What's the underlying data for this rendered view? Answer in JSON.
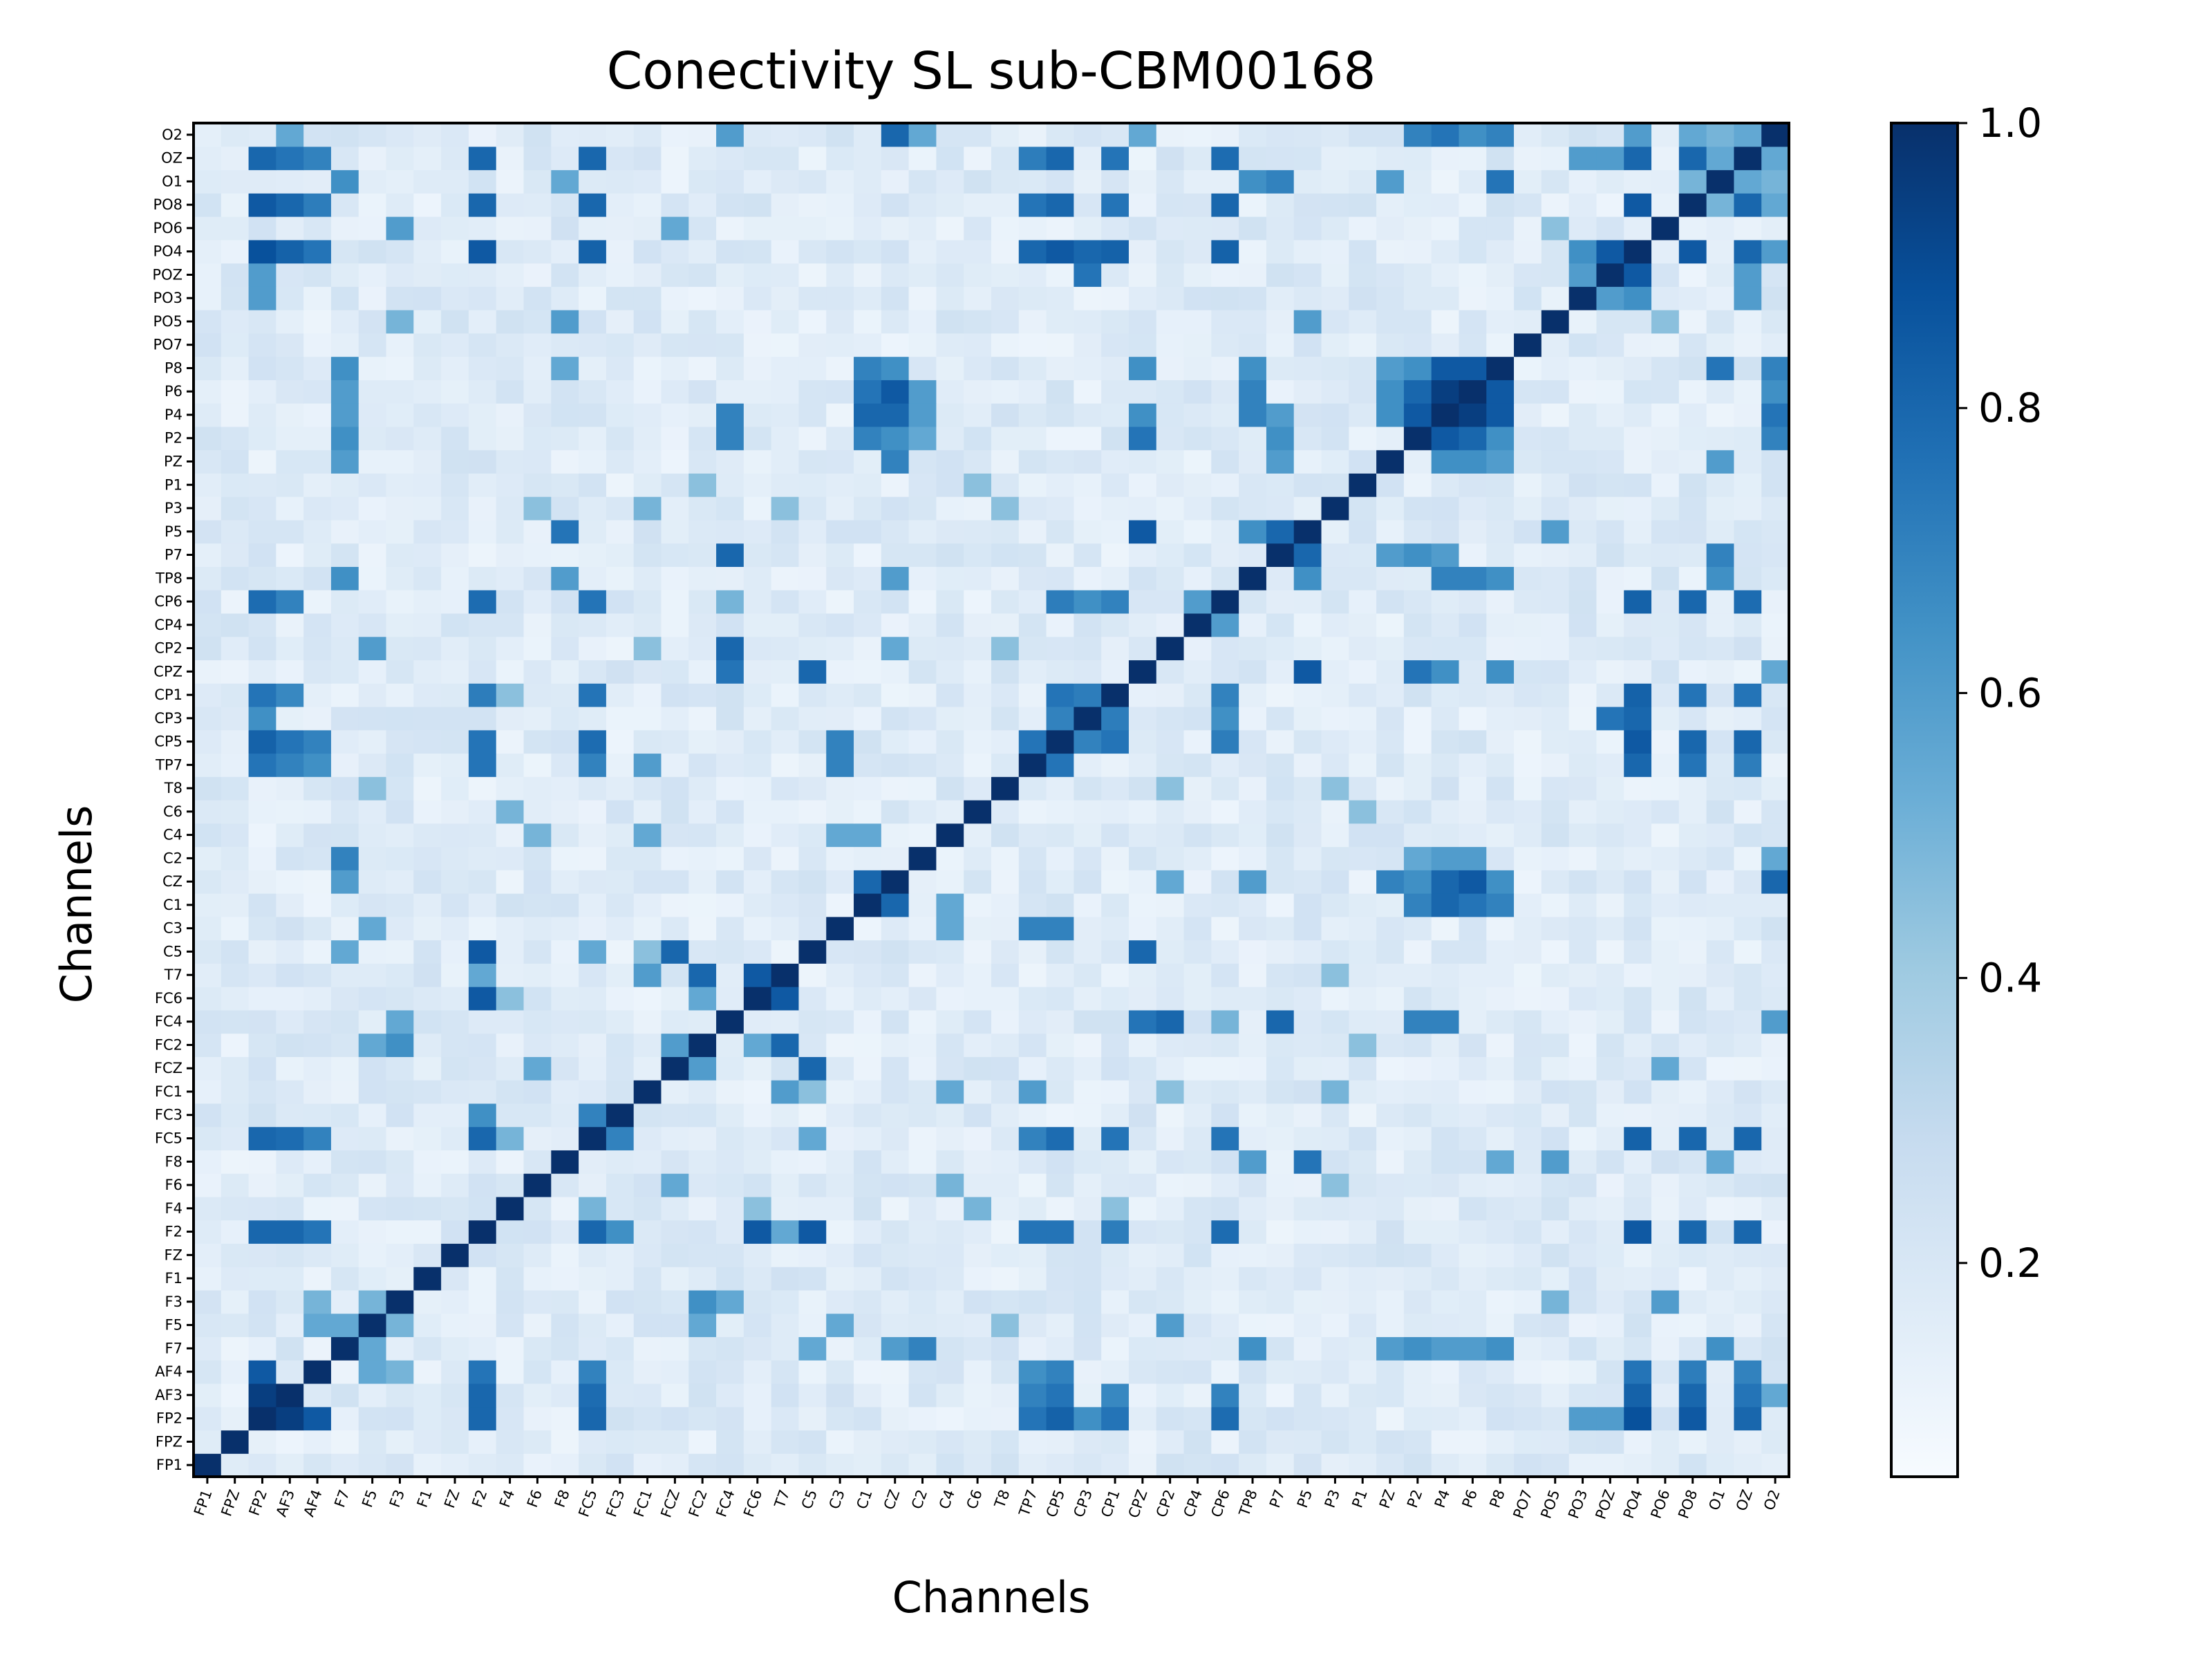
{
  "chart_data": {
    "type": "heatmap",
    "title": "Conectivity SL sub-CBM00168",
    "xlabel": "Channels",
    "ylabel": "Channels",
    "colormap": "Blues",
    "colorbar": {
      "range": [
        0.05,
        1.0
      ],
      "ticks": [
        0.2,
        0.4,
        0.6,
        0.8,
        1.0
      ],
      "tick_labels": [
        "0.2",
        "0.4",
        "0.6",
        "0.8",
        "1.0"
      ]
    },
    "channels": [
      "FP1",
      "FPZ",
      "FP2",
      "AF3",
      "AF4",
      "F7",
      "F5",
      "F3",
      "F1",
      "FZ",
      "F2",
      "F4",
      "F6",
      "F8",
      "FC5",
      "FC3",
      "FC1",
      "FCZ",
      "FC2",
      "FC4",
      "FC6",
      "T7",
      "C5",
      "C3",
      "C1",
      "CZ",
      "C2",
      "C4",
      "C6",
      "T8",
      "TP7",
      "CP5",
      "CP3",
      "CP1",
      "CPZ",
      "CP2",
      "CP4",
      "CP6",
      "TP8",
      "P7",
      "P5",
      "P3",
      "P1",
      "PZ",
      "P2",
      "P4",
      "P6",
      "P8",
      "PO7",
      "PO5",
      "PO3",
      "POZ",
      "PO4",
      "PO6",
      "PO8",
      "O1",
      "OZ",
      "O2"
    ],
    "strong_links": [
      [
        "FP2",
        "AF3",
        0.95
      ],
      [
        "FP2",
        "AF4",
        0.85
      ],
      [
        "FP2",
        "F2",
        0.8
      ],
      [
        "FP2",
        "FC5",
        0.8
      ],
      [
        "FP2",
        "TP7",
        0.75
      ],
      [
        "FP2",
        "CP5",
        0.82
      ],
      [
        "FP2",
        "CP3",
        0.65
      ],
      [
        "FP2",
        "CP1",
        0.75
      ],
      [
        "FP2",
        "CP6",
        0.78
      ],
      [
        "FP2",
        "PO4",
        0.88
      ],
      [
        "FP2",
        "PO8",
        0.85
      ],
      [
        "FP2",
        "OZ",
        0.8
      ],
      [
        "FP2",
        "POZ",
        0.6
      ],
      [
        "FP2",
        "PO3",
        0.6
      ],
      [
        "AF3",
        "F2",
        0.8
      ],
      [
        "AF3",
        "FC5",
        0.78
      ],
      [
        "AF3",
        "CP5",
        0.75
      ],
      [
        "AF3",
        "PO4",
        0.82
      ],
      [
        "AF3",
        "PO8",
        0.8
      ],
      [
        "AF3",
        "OZ",
        0.75
      ],
      [
        "AF3",
        "O2",
        0.55
      ],
      [
        "AF3",
        "CP1",
        0.68
      ],
      [
        "AF3",
        "TP7",
        0.7
      ],
      [
        "AF3",
        "CP6",
        0.7
      ],
      [
        "AF4",
        "F2",
        0.75
      ],
      [
        "AF4",
        "FC5",
        0.7
      ],
      [
        "AF4",
        "TP7",
        0.65
      ],
      [
        "AF4",
        "CP5",
        0.7
      ],
      [
        "AF4",
        "PO4",
        0.75
      ],
      [
        "AF4",
        "PO8",
        0.72
      ],
      [
        "AF4",
        "OZ",
        0.7
      ],
      [
        "AF4",
        "F5",
        0.55
      ],
      [
        "AF4",
        "F3",
        0.5
      ],
      [
        "F7",
        "C2",
        0.7
      ],
      [
        "F7",
        "TP8",
        0.65
      ],
      [
        "F7",
        "P2",
        0.65
      ],
      [
        "F7",
        "P8",
        0.65
      ],
      [
        "F7",
        "CZ",
        0.6
      ],
      [
        "F7",
        "F5",
        0.55
      ],
      [
        "F7",
        "O1",
        0.65
      ],
      [
        "F7",
        "PZ",
        0.6
      ],
      [
        "F7",
        "P4",
        0.6
      ],
      [
        "F7",
        "P6",
        0.6
      ],
      [
        "F5",
        "C3",
        0.55
      ],
      [
        "F5",
        "CP2",
        0.6
      ],
      [
        "F5",
        "F3",
        0.5
      ],
      [
        "F3",
        "FC2",
        0.65
      ],
      [
        "F3",
        "PO6",
        0.6
      ],
      [
        "F3",
        "PO5",
        0.5
      ],
      [
        "F2",
        "FC5",
        0.8
      ],
      [
        "F2",
        "TP7",
        0.75
      ],
      [
        "F2",
        "CP5",
        0.75
      ],
      [
        "F2",
        "CP1",
        0.72
      ],
      [
        "F2",
        "CP6",
        0.78
      ],
      [
        "F2",
        "PO4",
        0.85
      ],
      [
        "F2",
        "PO8",
        0.8
      ],
      [
        "F2",
        "OZ",
        0.8
      ],
      [
        "F2",
        "C5",
        0.85
      ],
      [
        "F2",
        "T7",
        0.55
      ],
      [
        "F4",
        "CP1",
        0.45
      ],
      [
        "F4",
        "FC6",
        0.45
      ],
      [
        "F8",
        "P5",
        0.75
      ],
      [
        "F8",
        "TP8",
        0.6
      ],
      [
        "F8",
        "P8",
        0.55
      ],
      [
        "F8",
        "PO5",
        0.6
      ],
      [
        "F8",
        "O1",
        0.55
      ],
      [
        "FC5",
        "CP5",
        0.78
      ],
      [
        "FC5",
        "CP1",
        0.75
      ],
      [
        "FC5",
        "CP6",
        0.75
      ],
      [
        "FC5",
        "PO4",
        0.82
      ],
      [
        "FC5",
        "PO8",
        0.8
      ],
      [
        "FC5",
        "OZ",
        0.8
      ],
      [
        "FC5",
        "TP7",
        0.7
      ],
      [
        "FC5",
        "F4",
        0.5
      ],
      [
        "FC3",
        "FC5",
        0.7
      ],
      [
        "FC3",
        "F2",
        0.65
      ],
      [
        "FC1",
        "T7",
        0.6
      ],
      [
        "FC1",
        "CP2",
        0.55
      ],
      [
        "FC1",
        "TP7",
        0.6
      ],
      [
        "FC1",
        "C5",
        0.45
      ],
      [
        "FCZ",
        "C5",
        0.8
      ],
      [
        "FCZ",
        "FC2",
        0.6
      ],
      [
        "FCZ",
        "PO6",
        0.55
      ],
      [
        "FCZ",
        "F6",
        0.55
      ],
      [
        "FC2",
        "T7",
        0.8
      ],
      [
        "FC2",
        "F5",
        0.55
      ],
      [
        "FC4",
        "P7",
        0.8
      ],
      [
        "FC4",
        "CP2",
        0.8
      ],
      [
        "FC4",
        "P4",
        0.7
      ],
      [
        "FC4",
        "P2",
        0.7
      ],
      [
        "FC4",
        "O2",
        0.6
      ],
      [
        "FC4",
        "F3",
        0.55
      ],
      [
        "FC4",
        "CP6",
        0.5
      ],
      [
        "FC6",
        "T7",
        0.85
      ],
      [
        "FC6",
        "F2",
        0.85
      ],
      [
        "FC6",
        "FC2",
        0.55
      ],
      [
        "T7",
        "FC2",
        0.8
      ],
      [
        "C5",
        "F7",
        0.55
      ],
      [
        "C5",
        "FC5",
        0.55
      ],
      [
        "C3",
        "TP7",
        0.7
      ],
      [
        "C3",
        "CP5",
        0.7
      ],
      [
        "C3",
        "C4",
        0.55
      ],
      [
        "C1",
        "CZ",
        0.8
      ],
      [
        "C1",
        "C4",
        0.55
      ],
      [
        "CZ",
        "P4",
        0.85
      ],
      [
        "CZ",
        "P6",
        0.85
      ],
      [
        "CZ",
        "P2",
        0.75
      ],
      [
        "CZ",
        "O2",
        0.8
      ],
      [
        "CZ",
        "P8",
        0.65
      ],
      [
        "CZ",
        "TP8",
        0.6
      ],
      [
        "CZ",
        "CP2",
        0.55
      ],
      [
        "C2",
        "P4",
        0.6
      ],
      [
        "C2",
        "P6",
        0.6
      ],
      [
        "C2",
        "O2",
        0.55
      ],
      [
        "C2",
        "P2",
        0.55
      ],
      [
        "C4",
        "FC1",
        0.55
      ],
      [
        "C4",
        "F6",
        0.5
      ],
      [
        "C6",
        "F4",
        0.5
      ],
      [
        "T8",
        "F5",
        0.45
      ],
      [
        "T8",
        "P3",
        0.45
      ],
      [
        "TP7",
        "CP5",
        0.75
      ],
      [
        "TP7",
        "PO4",
        0.8
      ],
      [
        "TP7",
        "PO8",
        0.75
      ],
      [
        "TP7",
        "OZ",
        0.72
      ],
      [
        "TP7",
        "FC5",
        0.7
      ],
      [
        "CP5",
        "CP3",
        0.7
      ],
      [
        "CP5",
        "CP6",
        0.72
      ],
      [
        "CP5",
        "PO4",
        0.85
      ],
      [
        "CP5",
        "PO8",
        0.8
      ],
      [
        "CP5",
        "OZ",
        0.8
      ],
      [
        "CP5",
        "CP1",
        0.75
      ],
      [
        "CP3",
        "CP1",
        0.72
      ],
      [
        "CP3",
        "PO4",
        0.8
      ],
      [
        "CP3",
        "POZ",
        0.75
      ],
      [
        "CP3",
        "CP6",
        0.65
      ],
      [
        "CP1",
        "CP6",
        0.7
      ],
      [
        "CP1",
        "PO4",
        0.82
      ],
      [
        "CP1",
        "PO8",
        0.75
      ],
      [
        "CP1",
        "OZ",
        0.75
      ],
      [
        "CPZ",
        "C5",
        0.8
      ],
      [
        "CPZ",
        "FC4",
        0.75
      ],
      [
        "CPZ",
        "P5",
        0.85
      ],
      [
        "CPZ",
        "P2",
        0.75
      ],
      [
        "CPZ",
        "P4",
        0.65
      ],
      [
        "CPZ",
        "P8",
        0.65
      ],
      [
        "CPZ",
        "O2",
        0.55
      ],
      [
        "CP2",
        "FC1",
        0.45
      ],
      [
        "CP2",
        "T8",
        0.45
      ],
      [
        "CP6",
        "PO4",
        0.82
      ],
      [
        "CP6",
        "PO8",
        0.8
      ],
      [
        "CP6",
        "OZ",
        0.78
      ],
      [
        "CP6",
        "CP4",
        0.6
      ],
      [
        "TP8",
        "P6",
        0.7
      ],
      [
        "TP8",
        "P4",
        0.7
      ],
      [
        "TP8",
        "O1",
        0.65
      ],
      [
        "TP8",
        "P8",
        0.65
      ],
      [
        "TP8",
        "CZ",
        0.6
      ],
      [
        "P7",
        "P5",
        0.8
      ],
      [
        "P7",
        "P2",
        0.65
      ],
      [
        "P7",
        "P4",
        0.6
      ],
      [
        "P7",
        "PZ",
        0.6
      ],
      [
        "P7",
        "O1",
        0.7
      ],
      [
        "P7",
        "FC4",
        0.8
      ],
      [
        "P5",
        "F8",
        0.75
      ],
      [
        "P5",
        "TP8",
        0.65
      ],
      [
        "P5",
        "PO5",
        0.6
      ],
      [
        "P3",
        "F6",
        0.45
      ],
      [
        "P3",
        "FC1",
        0.5
      ],
      [
        "P3",
        "T7",
        0.45
      ],
      [
        "P1",
        "FC2",
        0.45
      ],
      [
        "P1",
        "C6",
        0.45
      ],
      [
        "PZ",
        "P6",
        0.65
      ],
      [
        "PZ",
        "P4",
        0.65
      ],
      [
        "PZ",
        "P8",
        0.6
      ],
      [
        "PZ",
        "CZ",
        0.7
      ],
      [
        "PZ",
        "O1",
        0.6
      ],
      [
        "P2",
        "P4",
        0.85
      ],
      [
        "P2",
        "P6",
        0.8
      ],
      [
        "P2",
        "P8",
        0.65
      ],
      [
        "P2",
        "CZ",
        0.65
      ],
      [
        "P2",
        "O2",
        0.7
      ],
      [
        "P2",
        "C1",
        0.7
      ],
      [
        "P4",
        "P6",
        0.95
      ],
      [
        "P4",
        "P8",
        0.85
      ],
      [
        "P4",
        "CZ",
        0.8
      ],
      [
        "P4",
        "O2",
        0.75
      ],
      [
        "P4",
        "C1",
        0.8
      ],
      [
        "P6",
        "P8",
        0.85
      ],
      [
        "P6",
        "C1",
        0.75
      ],
      [
        "P6",
        "O2",
        0.65
      ],
      [
        "P8",
        "O1",
        0.75
      ],
      [
        "P8",
        "C1",
        0.7
      ],
      [
        "P8",
        "O2",
        0.7
      ],
      [
        "PO3",
        "POZ",
        0.6
      ],
      [
        "PO3",
        "PO4",
        0.65
      ],
      [
        "PO3",
        "OZ",
        0.6
      ],
      [
        "POZ",
        "PO4",
        0.85
      ],
      [
        "POZ",
        "OZ",
        0.6
      ],
      [
        "POZ",
        "CP3",
        0.75
      ],
      [
        "PO4",
        "PO8",
        0.85
      ],
      [
        "PO4",
        "OZ",
        0.8
      ],
      [
        "PO4",
        "O2",
        0.6
      ],
      [
        "PO6",
        "PO5",
        0.45
      ],
      [
        "PO8",
        "O1",
        0.5
      ],
      [
        "PO8",
        "OZ",
        0.8
      ],
      [
        "PO8",
        "O2",
        0.55
      ],
      [
        "O1",
        "OZ",
        0.55
      ],
      [
        "O1",
        "O2",
        0.5
      ],
      [
        "OZ",
        "O2",
        0.55
      ]
    ],
    "series_note": ""
  }
}
